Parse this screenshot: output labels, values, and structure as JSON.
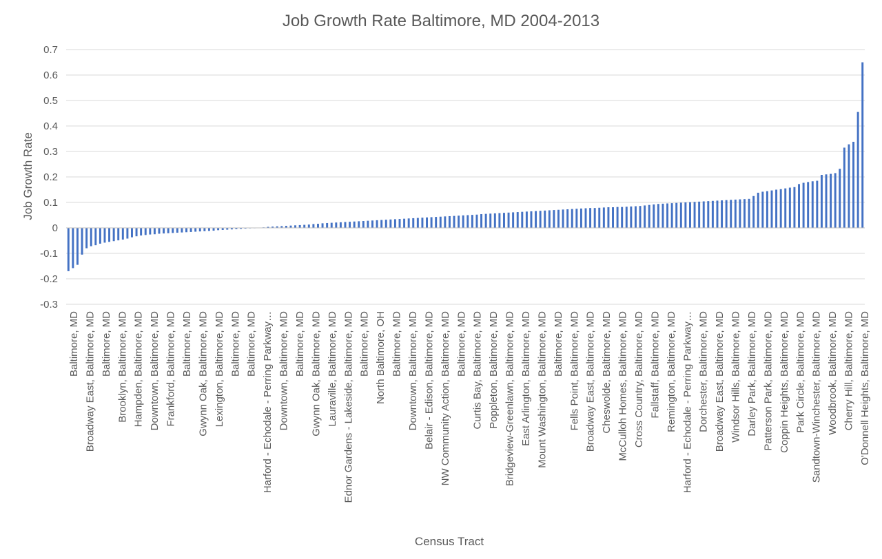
{
  "chart_data": {
    "type": "bar",
    "title": "Job Growth Rate Baltimore, MD 2004-2013",
    "xlabel": "Census Tract",
    "ylabel": "Job Growth Rate",
    "ylim": [
      -0.3,
      0.7
    ],
    "yticks": [
      -0.3,
      -0.2,
      -0.1,
      0,
      0.1,
      0.2,
      0.3,
      0.4,
      0.5,
      0.6,
      0.7
    ],
    "ytick_labels": [
      "-0.3",
      "-0.2",
      "-0.1",
      "0",
      "0.1",
      "0.2",
      "0.3",
      "0.4",
      "0.5",
      "0.6",
      "0.7"
    ],
    "grid": true,
    "bar_color": "#4472C4",
    "visible_category_labels": [
      "Baltimore, MD",
      "Broadway East, Baltimore, MD",
      "Baltimore, MD",
      "Brooklyn, Baltimore, MD",
      "Hampden, Baltimore, MD",
      "Downtown, Baltimore, MD",
      "Frankford, Baltimore, MD",
      "Baltimore, MD",
      "Gwynn Oak, Baltimore, MD",
      "Lexington, Baltimore, MD",
      "Baltimore, MD",
      "Baltimore, MD",
      "Harford - Echodale - Perring Parkway…",
      "Downtown, Baltimore, MD",
      "Baltimore, MD",
      "Gwynn Oak, Baltimore, MD",
      "Lauraville, Baltimore, MD",
      "Ednor Gardens - Lakeside, Baltimore, MD",
      "Baltimore, MD",
      "North Baltimore, OH",
      "Baltimore, MD",
      "Downtown, Baltimore, MD",
      "Belair - Edison, Baltimore, MD",
      "NW Community Action, Baltimore, MD",
      "Baltimore, MD",
      "Curtis Bay, Baltimore, MD",
      "Poppleton, Baltimore, MD",
      "Bridgeview-Greenlawn, Baltimore, MD",
      "East Arlington, Baltimore, MD",
      "Mount Washington, Baltimore, MD",
      "Baltimore, MD",
      "Fells Point, Baltimore, MD",
      "Broadway East, Baltimore, MD",
      "Cheswolde, Baltimore, MD",
      "McCulloh Homes, Baltimore, MD",
      "Cross Country, Baltimore, MD",
      "Fallstaff, Baltimore, MD",
      "Remington, Baltimore, MD",
      "Harford - Echodale - Perring Parkway…",
      "Dorchester, Baltimore, MD",
      "Broadway East, Baltimore, MD",
      "Windsor Hills, Baltimore, MD",
      "Darley Park, Baltimore, MD",
      "Patterson Park, Baltimore, MD",
      "Coppin Heights, Baltimore, MD",
      "Park Circle, Baltimore, MD",
      "Sandtown-Winchester, Baltimore, MD",
      "Woodbrook, Baltimore, MD",
      "Cherry Hill, Baltimore, MD",
      "O'Donnell Heights, Baltimore, MD"
    ],
    "values": [
      -0.17,
      -0.158,
      -0.145,
      -0.105,
      -0.08,
      -0.072,
      -0.068,
      -0.062,
      -0.058,
      -0.055,
      -0.052,
      -0.049,
      -0.046,
      -0.042,
      -0.037,
      -0.033,
      -0.03,
      -0.028,
      -0.026,
      -0.025,
      -0.023,
      -0.022,
      -0.021,
      -0.02,
      -0.019,
      -0.018,
      -0.017,
      -0.016,
      -0.015,
      -0.014,
      -0.013,
      -0.012,
      -0.011,
      -0.009,
      -0.008,
      -0.007,
      -0.006,
      -0.005,
      -0.004,
      -0.003,
      -0.002,
      -0.001,
      0.001,
      0.002,
      0.004,
      0.005,
      0.006,
      0.007,
      0.008,
      0.009,
      0.01,
      0.011,
      0.012,
      0.013,
      0.015,
      0.016,
      0.018,
      0.019,
      0.02,
      0.021,
      0.022,
      0.023,
      0.024,
      0.025,
      0.026,
      0.027,
      0.028,
      0.029,
      0.03,
      0.031,
      0.032,
      0.033,
      0.034,
      0.035,
      0.036,
      0.037,
      0.038,
      0.039,
      0.04,
      0.041,
      0.042,
      0.043,
      0.044,
      0.045,
      0.046,
      0.047,
      0.048,
      0.049,
      0.05,
      0.051,
      0.052,
      0.054,
      0.055,
      0.056,
      0.057,
      0.058,
      0.059,
      0.06,
      0.061,
      0.062,
      0.063,
      0.064,
      0.065,
      0.066,
      0.067,
      0.068,
      0.069,
      0.07,
      0.071,
      0.072,
      0.073,
      0.074,
      0.075,
      0.076,
      0.077,
      0.078,
      0.078,
      0.079,
      0.08,
      0.081,
      0.081,
      0.082,
      0.082,
      0.083,
      0.084,
      0.085,
      0.086,
      0.088,
      0.09,
      0.092,
      0.094,
      0.095,
      0.096,
      0.097,
      0.098,
      0.099,
      0.1,
      0.101,
      0.102,
      0.103,
      0.104,
      0.105,
      0.106,
      0.107,
      0.108,
      0.109,
      0.11,
      0.111,
      0.112,
      0.113,
      0.114,
      0.125,
      0.138,
      0.142,
      0.144,
      0.147,
      0.15,
      0.152,
      0.155,
      0.158,
      0.16,
      0.172,
      0.177,
      0.18,
      0.183,
      0.185,
      0.208,
      0.21,
      0.212,
      0.215,
      0.232,
      0.315,
      0.328,
      0.338,
      0.455,
      0.65
    ]
  }
}
